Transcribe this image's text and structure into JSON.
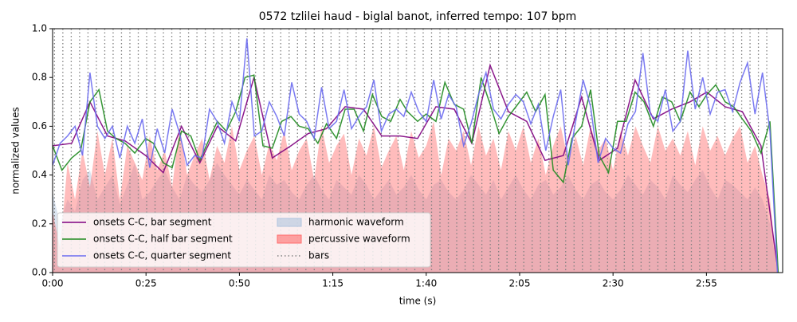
{
  "chart_data": {
    "type": "line",
    "title": "0572 tzlilei haud - biglal banot, inferred tempo: 107 bpm",
    "xlabel": "time (s)",
    "ylabel": "normalized values",
    "xlim": [
      0,
      195.4
    ],
    "ylim": [
      0,
      1
    ],
    "xticks": [
      {
        "value": 0,
        "label": "0:00"
      },
      {
        "value": 25,
        "label": "0:25"
      },
      {
        "value": 50,
        "label": "0:50"
      },
      {
        "value": 75,
        "label": "1:15"
      },
      {
        "value": 100,
        "label": "1:40"
      },
      {
        "value": 125,
        "label": "2:05"
      },
      {
        "value": 150,
        "label": "2:30"
      },
      {
        "value": 175,
        "label": "2:55"
      }
    ],
    "yticks": [
      {
        "value": 0,
        "label": "0.0"
      },
      0.2,
      0.4,
      0.6,
      0.8,
      {
        "value": 1,
        "label": "1.0"
      }
    ],
    "legend": "lower left",
    "series": [
      {
        "name": "onsets C-C, bar segment",
        "kind": "line",
        "color": "#800080",
        "x": [
          0,
          5.1,
          10.0,
          14.7,
          19.4,
          24.9,
          29.6,
          34.5,
          39.4,
          44.1,
          49.0,
          53.9,
          58.8,
          63.8,
          68.4,
          73.3,
          78.3,
          83.2,
          88.1,
          93.0,
          97.7,
          102.6,
          107.5,
          112.2,
          117.1,
          122.0,
          126.9,
          131.8,
          136.7,
          141.6,
          146.3,
          151.2,
          155.9,
          160.8,
          165.7,
          170.6,
          175.1,
          180.0,
          184.6,
          189.6,
          194.2
        ],
        "values": [
          0.52,
          0.53,
          0.7,
          0.56,
          0.54,
          0.48,
          0.41,
          0.6,
          0.45,
          0.6,
          0.54,
          0.8,
          0.47,
          0.52,
          0.57,
          0.59,
          0.68,
          0.67,
          0.56,
          0.56,
          0.55,
          0.68,
          0.67,
          0.53,
          0.85,
          0.66,
          0.62,
          0.46,
          0.48,
          0.72,
          0.46,
          0.51,
          0.79,
          0.63,
          0.67,
          0.7,
          0.74,
          0.68,
          0.66,
          0.52,
          0.0
        ]
      },
      {
        "name": "onsets C-C, half bar segment",
        "kind": "line",
        "color": "#1f8a1f",
        "x": [
          0,
          2.5,
          5.1,
          7.5,
          10,
          12.4,
          14.7,
          17,
          19.4,
          22,
          24.9,
          27,
          29.6,
          32,
          34.5,
          37,
          39.4,
          42,
          44.1,
          46.5,
          49,
          51.5,
          53.9,
          56.3,
          58.8,
          61.3,
          63.8,
          66,
          68.4,
          71,
          73.3,
          76,
          78.3,
          80.7,
          83.2,
          85.6,
          88.1,
          90.5,
          93,
          95,
          97.7,
          100,
          102.6,
          105,
          107.5,
          110,
          112.2,
          114.7,
          117.1,
          119.5,
          122,
          124.5,
          126.9,
          129.3,
          131.8,
          134,
          136.7,
          139,
          141.6,
          144,
          146.3,
          148.8,
          151.2,
          153.5,
          155.9,
          158.3,
          160.8,
          163.2,
          165.7,
          168,
          170.6,
          173,
          175.1,
          177.5,
          180,
          182.3,
          184.6,
          187,
          189.6,
          192,
          194.2
        ],
        "values": [
          0.52,
          0.42,
          0.47,
          0.5,
          0.7,
          0.75,
          0.58,
          0.55,
          0.53,
          0.49,
          0.55,
          0.53,
          0.45,
          0.43,
          0.58,
          0.56,
          0.46,
          0.55,
          0.62,
          0.58,
          0.66,
          0.8,
          0.81,
          0.52,
          0.51,
          0.62,
          0.64,
          0.6,
          0.59,
          0.53,
          0.61,
          0.55,
          0.67,
          0.67,
          0.58,
          0.73,
          0.64,
          0.62,
          0.71,
          0.66,
          0.62,
          0.65,
          0.62,
          0.78,
          0.69,
          0.67,
          0.53,
          0.8,
          0.69,
          0.57,
          0.64,
          0.69,
          0.74,
          0.66,
          0.73,
          0.42,
          0.37,
          0.55,
          0.6,
          0.75,
          0.48,
          0.41,
          0.62,
          0.62,
          0.74,
          0.7,
          0.6,
          0.72,
          0.7,
          0.62,
          0.74,
          0.68,
          0.73,
          0.77,
          0.7,
          0.68,
          0.63,
          0.58,
          0.49,
          0.62,
          0.0
        ]
      },
      {
        "name": "onsets C-C, quarter segment",
        "kind": "line",
        "color": "#6b6bf0",
        "x": [
          0,
          2,
          4,
          6,
          8,
          10,
          12,
          14,
          16,
          18,
          20,
          22,
          24,
          26,
          28,
          30,
          32,
          34,
          36,
          38,
          40,
          42,
          44,
          46,
          48,
          50,
          52,
          54,
          56,
          58,
          60,
          62,
          64,
          66,
          68,
          70,
          72,
          74,
          76,
          78,
          80,
          82,
          84,
          86,
          88,
          90,
          92,
          94,
          96,
          98,
          100,
          102,
          104,
          106,
          108,
          110,
          112,
          114,
          116,
          118,
          120,
          122,
          124,
          126,
          128,
          130,
          132,
          134,
          136,
          138,
          140,
          142,
          144,
          146,
          148,
          150,
          152,
          154,
          156,
          158,
          160,
          162,
          164,
          166,
          168,
          170,
          172,
          174,
          176,
          178,
          180,
          182,
          184,
          186,
          188,
          190,
          192,
          194
        ],
        "values": [
          0.44,
          0.53,
          0.56,
          0.6,
          0.48,
          0.82,
          0.6,
          0.55,
          0.6,
          0.47,
          0.6,
          0.53,
          0.63,
          0.43,
          0.59,
          0.49,
          0.67,
          0.57,
          0.44,
          0.48,
          0.47,
          0.67,
          0.62,
          0.53,
          0.7,
          0.62,
          0.96,
          0.56,
          0.58,
          0.7,
          0.64,
          0.56,
          0.78,
          0.65,
          0.62,
          0.55,
          0.76,
          0.59,
          0.62,
          0.75,
          0.59,
          0.64,
          0.68,
          0.79,
          0.58,
          0.65,
          0.67,
          0.64,
          0.74,
          0.66,
          0.62,
          0.79,
          0.63,
          0.73,
          0.68,
          0.52,
          0.61,
          0.73,
          0.82,
          0.67,
          0.63,
          0.69,
          0.73,
          0.7,
          0.61,
          0.69,
          0.5,
          0.64,
          0.75,
          0.44,
          0.62,
          0.79,
          0.68,
          0.45,
          0.55,
          0.51,
          0.49,
          0.61,
          0.66,
          0.9,
          0.65,
          0.62,
          0.75,
          0.58,
          0.62,
          0.91,
          0.67,
          0.8,
          0.65,
          0.74,
          0.75,
          0.66,
          0.78,
          0.86,
          0.65,
          0.82,
          0.58,
          0.0
        ]
      },
      {
        "name": "harmonic waveform",
        "kind": "area",
        "color": "#b0c4de",
        "x": [
          0,
          2,
          4,
          6,
          8,
          10,
          12,
          14,
          16,
          18,
          20,
          22,
          24,
          26,
          28,
          30,
          32,
          34,
          36,
          38,
          40,
          42,
          44,
          46,
          48,
          50,
          52,
          54,
          56,
          58,
          60,
          62,
          64,
          66,
          68,
          70,
          72,
          74,
          76,
          78,
          80,
          82,
          84,
          86,
          88,
          90,
          92,
          94,
          96,
          98,
          100,
          102,
          104,
          106,
          108,
          110,
          112,
          114,
          116,
          118,
          120,
          122,
          124,
          126,
          128,
          130,
          132,
          134,
          136,
          138,
          140,
          142,
          144,
          146,
          148,
          150,
          152,
          154,
          156,
          158,
          160,
          162,
          164,
          166,
          168,
          170,
          172,
          174,
          176,
          178,
          180,
          182,
          184,
          186,
          188,
          190,
          192,
          194
        ],
        "values": [
          0.33,
          0.2,
          0.3,
          0.25,
          0.38,
          0.42,
          0.3,
          0.35,
          0.4,
          0.28,
          0.36,
          0.45,
          0.3,
          0.33,
          0.38,
          0.42,
          0.35,
          0.3,
          0.4,
          0.36,
          0.33,
          0.38,
          0.45,
          0.4,
          0.36,
          0.32,
          0.38,
          0.34,
          0.3,
          0.4,
          0.36,
          0.38,
          0.33,
          0.3,
          0.36,
          0.4,
          0.34,
          0.3,
          0.38,
          0.35,
          0.32,
          0.4,
          0.36,
          0.3,
          0.34,
          0.38,
          0.32,
          0.35,
          0.4,
          0.34,
          0.3,
          0.36,
          0.38,
          0.33,
          0.3,
          0.34,
          0.4,
          0.36,
          0.32,
          0.38,
          0.3,
          0.35,
          0.4,
          0.34,
          0.3,
          0.36,
          0.38,
          0.32,
          0.35,
          0.4,
          0.34,
          0.3,
          0.36,
          0.38,
          0.33,
          0.3,
          0.34,
          0.4,
          0.36,
          0.32,
          0.38,
          0.35,
          0.3,
          0.4,
          0.36,
          0.33,
          0.38,
          0.42,
          0.35,
          0.3,
          0.38,
          0.36,
          0.33,
          0.3,
          0.35,
          0.3,
          0.2,
          0.0
        ]
      },
      {
        "name": "percussive waveform",
        "kind": "area",
        "color": "#ff6b6b",
        "x": [
          0,
          2,
          4,
          6,
          8,
          10,
          12,
          14,
          16,
          18,
          20,
          22,
          24,
          26,
          28,
          30,
          32,
          34,
          36,
          38,
          40,
          42,
          44,
          46,
          48,
          50,
          52,
          54,
          56,
          58,
          60,
          62,
          64,
          66,
          68,
          70,
          72,
          74,
          76,
          78,
          80,
          82,
          84,
          86,
          88,
          90,
          92,
          94,
          96,
          98,
          100,
          102,
          104,
          106,
          108,
          110,
          112,
          114,
          116,
          118,
          120,
          122,
          124,
          126,
          128,
          130,
          132,
          134,
          136,
          138,
          140,
          142,
          144,
          146,
          148,
          150,
          152,
          154,
          156,
          158,
          160,
          162,
          164,
          166,
          168,
          170,
          172,
          174,
          176,
          178,
          180,
          182,
          184,
          186,
          188,
          190,
          192,
          194
        ],
        "values": [
          0.25,
          0.1,
          0.45,
          0.3,
          0.5,
          0.35,
          0.58,
          0.4,
          0.55,
          0.3,
          0.52,
          0.45,
          0.38,
          0.56,
          0.42,
          0.5,
          0.35,
          0.6,
          0.4,
          0.48,
          0.55,
          0.38,
          0.52,
          0.45,
          0.6,
          0.42,
          0.5,
          0.56,
          0.4,
          0.53,
          0.46,
          0.58,
          0.42,
          0.5,
          0.55,
          0.38,
          0.6,
          0.45,
          0.52,
          0.57,
          0.4,
          0.55,
          0.48,
          0.6,
          0.43,
          0.5,
          0.56,
          0.42,
          0.58,
          0.47,
          0.52,
          0.62,
          0.4,
          0.55,
          0.5,
          0.58,
          0.44,
          0.6,
          0.48,
          0.55,
          0.42,
          0.58,
          0.5,
          0.6,
          0.45,
          0.55,
          0.4,
          0.52,
          0.6,
          0.46,
          0.56,
          0.44,
          0.6,
          0.5,
          0.55,
          0.42,
          0.58,
          0.48,
          0.6,
          0.52,
          0.45,
          0.6,
          0.5,
          0.55,
          0.48,
          0.58,
          0.44,
          0.6,
          0.5,
          0.56,
          0.48,
          0.55,
          0.6,
          0.45,
          0.52,
          0.4,
          0.3,
          0.0
        ]
      },
      {
        "name": "bars",
        "kind": "vlines",
        "color": "#808080",
        "x": [
          0.5,
          2.74,
          4.99,
          7.23,
          9.47,
          11.72,
          13.96,
          16.2,
          18.44,
          20.69,
          22.93,
          25.17,
          27.42,
          29.66,
          31.9,
          34.15,
          36.39,
          38.63,
          40.87,
          43.12,
          45.36,
          47.6,
          49.85,
          52.09,
          54.33,
          56.58,
          58.82,
          61.06,
          63.3,
          65.55,
          67.79,
          70.03,
          72.28,
          74.52,
          76.76,
          79.0,
          81.25,
          83.49,
          85.73,
          87.98,
          90.22,
          92.46,
          94.71,
          96.95,
          99.19,
          101.43,
          103.68,
          105.92,
          108.16,
          110.41,
          112.65,
          114.89,
          117.14,
          119.38,
          121.62,
          123.86,
          126.11,
          128.35,
          130.59,
          132.84,
          135.08,
          137.32,
          139.57,
          141.81,
          144.05,
          146.29,
          148.54,
          150.78,
          153.02,
          155.27,
          157.51,
          159.75,
          162.0,
          164.24,
          166.48,
          168.72,
          170.97,
          173.21,
          175.45,
          177.7,
          179.94,
          182.18,
          184.43,
          186.67,
          188.91,
          191.15
        ]
      }
    ]
  }
}
